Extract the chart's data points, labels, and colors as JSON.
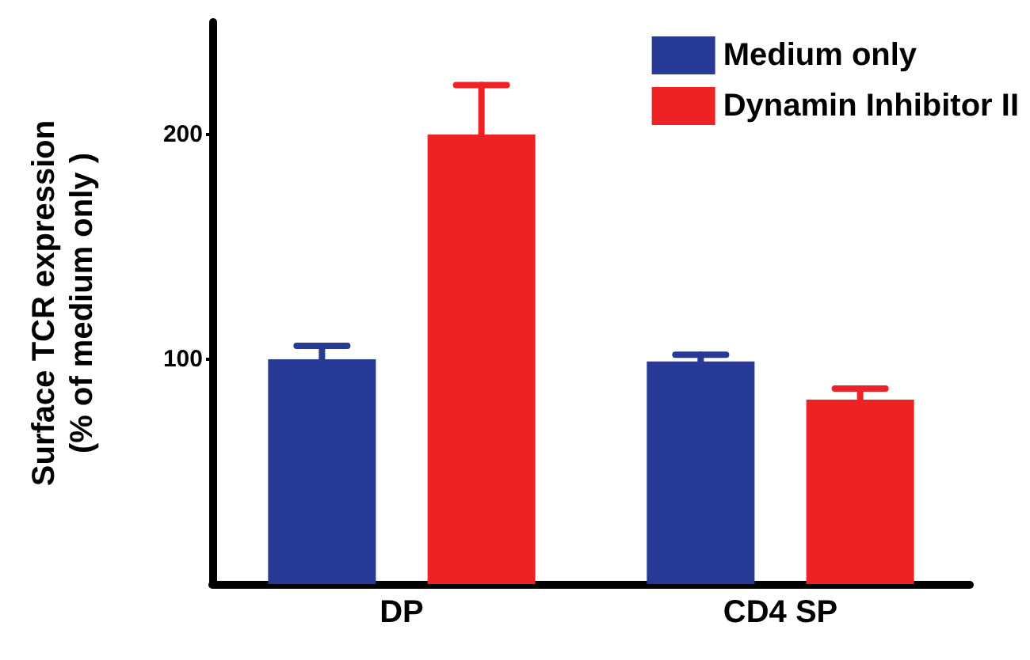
{
  "chart_data": {
    "type": "bar",
    "ylabel": "Surface TCR expression\n(% of medium only )",
    "categories": [
      "DP",
      "CD4 SP"
    ],
    "series": [
      {
        "name": "Medium only",
        "color": "#263a96",
        "values": [
          100,
          99
        ],
        "errors": [
          6,
          3
        ]
      },
      {
        "name": "Dynamin Inhibitor II",
        "color": "#ee2224",
        "values": [
          200,
          82
        ],
        "errors": [
          22,
          5
        ]
      }
    ],
    "ylim": [
      0,
      250
    ],
    "yticks": [
      100,
      200
    ],
    "grid": false,
    "legend": "top right"
  }
}
